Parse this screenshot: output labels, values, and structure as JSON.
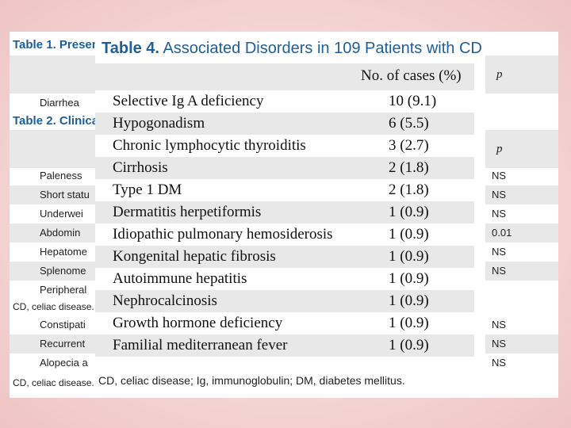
{
  "table1": {
    "title": "Table 1. Presen",
    "p_header": "p",
    "rows": [
      {
        "label": "Diarrhea"
      }
    ]
  },
  "table2": {
    "title": "Table 2. Clinical",
    "p_header": "p",
    "rows": [
      {
        "label": "Paleness",
        "p": "NS"
      },
      {
        "label": "Short statu",
        "p": "NS"
      },
      {
        "label": "Underwei",
        "p": "NS"
      },
      {
        "label": "Abdomin",
        "p": "0.01"
      },
      {
        "label": "Hepatome",
        "p": "NS"
      },
      {
        "label": "Splenome",
        "p": "NS"
      },
      {
        "label": "Peripheral",
        "p": ""
      }
    ],
    "footnote1": "CD, celiac disease.",
    "rows2": [
      {
        "label": "Constipati",
        "p": "NS"
      },
      {
        "label": "Recurrent",
        "p": "NS"
      },
      {
        "label": "Alopecia a",
        "p": "NS"
      }
    ],
    "footnote2": "CD, celiac disease."
  },
  "table4": {
    "title_bold": "Table 4.",
    "title_rest": " Associated Disorders in 109 Patients with CD",
    "column_header": "No. of cases (%)",
    "rows": [
      {
        "disorder": "Selective Ig A deficiency",
        "cases": "10 (9.1)"
      },
      {
        "disorder": "Hypogonadism",
        "cases": "6 (5.5)"
      },
      {
        "disorder": "Chronic lymphocytic thyroiditis",
        "cases": "3 (2.7)"
      },
      {
        "disorder": "Cirrhosis",
        "cases": "2 (1.8)"
      },
      {
        "disorder": "Type 1 DM",
        "cases": "2 (1.8)"
      },
      {
        "disorder": "Dermatitis herpetiformis",
        "cases": "1 (0.9)"
      },
      {
        "disorder": "Idiopathic pulmonary hemosiderosis",
        "cases": "1 (0.9)"
      },
      {
        "disorder": "Kongenital hepatic fibrosis",
        "cases": "1 (0.9)"
      },
      {
        "disorder": "Autoimmune hepatitis",
        "cases": "1 (0.9)"
      },
      {
        "disorder": "Nephrocalcinosis",
        "cases": "1 (0.9)"
      },
      {
        "disorder": "Growth hormone deficiency",
        "cases": "1 (0.9)"
      },
      {
        "disorder": "Familial mediterranean fever",
        "cases": "1 (0.9)"
      }
    ],
    "footnote": "CD, celiac disease; Ig, immunoglobulin; DM, diabetes mellitus."
  },
  "colors": {
    "title_blue": "#1f5e99",
    "row_shade": "#e8e8e8",
    "background_pink": "#f6d6d6"
  }
}
